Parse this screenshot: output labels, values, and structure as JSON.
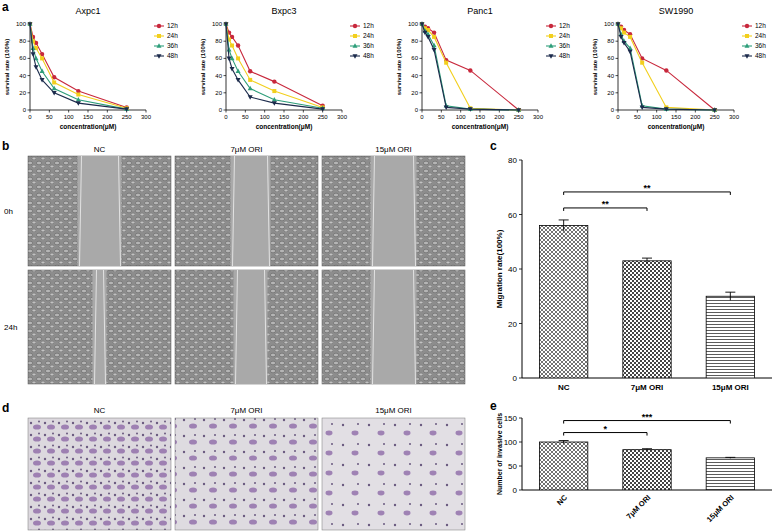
{
  "panel_labels": [
    "a",
    "b",
    "c",
    "d",
    "e"
  ],
  "images": {
    "b": {
      "columns": [
        "NC",
        "7μM ORI",
        "15μM ORI"
      ],
      "rows": [
        "0h",
        "24h"
      ]
    },
    "d": {
      "columns": [
        "NC",
        "7μM ORI",
        "15μM ORI"
      ]
    }
  },
  "chart_data": [
    {
      "type": "line",
      "title": "Axpc1",
      "x_label": "concentration(μM)",
      "y_label": "survival rate (100%)",
      "x": [
        0,
        7.8,
        15.6,
        31.25,
        62.5,
        125,
        250
      ],
      "xlim": [
        0,
        300
      ],
      "xticks": [
        0,
        50,
        100,
        150,
        200,
        250,
        300
      ],
      "ylim": [
        0,
        100
      ],
      "yticks": [
        0,
        20,
        40,
        60,
        80,
        100
      ],
      "legend": "right",
      "series": [
        {
          "name": "12h",
          "color": "#c8283c",
          "marker": "circle",
          "values": [
            100,
            85,
            78,
            65,
            38,
            22,
            3
          ]
        },
        {
          "name": "24h",
          "color": "#f2cf1d",
          "marker": "square",
          "values": [
            100,
            80,
            72,
            60,
            32,
            18,
            2
          ]
        },
        {
          "name": "36h",
          "color": "#2e9e7a",
          "marker": "triangle",
          "values": [
            100,
            72,
            60,
            45,
            25,
            12,
            1
          ]
        },
        {
          "name": "48h",
          "color": "#1c2b4c",
          "marker": "triangle-down",
          "values": [
            100,
            65,
            50,
            35,
            20,
            8,
            1
          ]
        }
      ]
    },
    {
      "type": "line",
      "title": "Bxpc3",
      "x_label": "concentration(μM)",
      "y_label": "survival rate (100%)",
      "x": [
        0,
        7.8,
        15.6,
        31.25,
        62.5,
        125,
        250
      ],
      "xlim": [
        0,
        300
      ],
      "xticks": [
        0,
        50,
        100,
        150,
        200,
        250,
        300
      ],
      "ylim": [
        0,
        100
      ],
      "yticks": [
        0,
        20,
        40,
        60,
        80,
        100
      ],
      "legend": "right",
      "series": [
        {
          "name": "12h",
          "color": "#c8283c",
          "marker": "circle",
          "values": [
            100,
            90,
            85,
            75,
            45,
            33,
            5
          ]
        },
        {
          "name": "24h",
          "color": "#f2cf1d",
          "marker": "square",
          "values": [
            100,
            82,
            75,
            60,
            35,
            22,
            3
          ]
        },
        {
          "name": "36h",
          "color": "#2e9e7a",
          "marker": "triangle",
          "values": [
            100,
            70,
            60,
            45,
            25,
            12,
            2
          ]
        },
        {
          "name": "48h",
          "color": "#1c2b4c",
          "marker": "triangle-down",
          "values": [
            100,
            60,
            48,
            35,
            15,
            8,
            1
          ]
        }
      ]
    },
    {
      "type": "line",
      "title": "Panc1",
      "x_label": "concentration(μM)",
      "y_label": "survival rate (100%)",
      "x": [
        0,
        7.8,
        15.6,
        31.25,
        62.5,
        125,
        250
      ],
      "xlim": [
        0,
        300
      ],
      "xticks": [
        0,
        50,
        100,
        150,
        200,
        250,
        300
      ],
      "ylim": [
        0,
        100
      ],
      "yticks": [
        0,
        20,
        40,
        60,
        80,
        100
      ],
      "legend": "right",
      "series": [
        {
          "name": "12h",
          "color": "#c8283c",
          "marker": "circle",
          "values": [
            100,
            97,
            95,
            90,
            58,
            46,
            0
          ]
        },
        {
          "name": "24h",
          "color": "#f2cf1d",
          "marker": "square",
          "values": [
            100,
            95,
            93,
            85,
            55,
            2,
            0
          ]
        },
        {
          "name": "36h",
          "color": "#2e9e7a",
          "marker": "triangle",
          "values": [
            100,
            92,
            88,
            75,
            5,
            1,
            0
          ]
        },
        {
          "name": "48h",
          "color": "#1c2b4c",
          "marker": "triangle-down",
          "values": [
            100,
            90,
            85,
            70,
            3,
            1,
            0
          ]
        }
      ]
    },
    {
      "type": "line",
      "title": "SW1990",
      "x_label": "concentration(μM)",
      "y_label": "survival rate (100%)",
      "x": [
        0,
        7.8,
        15.6,
        31.25,
        62.5,
        125,
        250
      ],
      "xlim": [
        0,
        300
      ],
      "xticks": [
        0,
        50,
        100,
        150,
        200,
        250,
        300
      ],
      "ylim": [
        0,
        100
      ],
      "yticks": [
        0,
        20,
        40,
        60,
        80,
        100
      ],
      "legend": "right",
      "series": [
        {
          "name": "12h",
          "color": "#c8283c",
          "marker": "circle",
          "values": [
            100,
            97,
            93,
            88,
            60,
            46,
            0
          ]
        },
        {
          "name": "24h",
          "color": "#f2cf1d",
          "marker": "square",
          "values": [
            100,
            95,
            90,
            85,
            55,
            3,
            0
          ]
        },
        {
          "name": "36h",
          "color": "#2e9e7a",
          "marker": "triangle",
          "values": [
            100,
            88,
            80,
            72,
            5,
            1,
            0
          ]
        },
        {
          "name": "48h",
          "color": "#1c2b4c",
          "marker": "triangle-down",
          "values": [
            100,
            85,
            78,
            68,
            3,
            1,
            0
          ]
        }
      ]
    },
    {
      "type": "bar",
      "y_label": "Migration rate(100%)",
      "categories": [
        "NC",
        "7μM ORI",
        "15μM ORI"
      ],
      "values": [
        56,
        43,
        30
      ],
      "errors": [
        2,
        1,
        1.5
      ],
      "ylim": [
        0,
        80
      ],
      "yticks": [
        0,
        20,
        40,
        60,
        80
      ],
      "annotations": [
        {
          "text": "**",
          "between": [
            "NC",
            "7μM ORI"
          ]
        },
        {
          "text": "**",
          "between": [
            "NC",
            "15μM ORI"
          ]
        }
      ]
    },
    {
      "type": "bar",
      "y_label": "Number of invasive cells",
      "categories": [
        "NC",
        "7μM ORI",
        "15μM ORI"
      ],
      "values": [
        100,
        84,
        67
      ],
      "errors": [
        3,
        2,
        1
      ],
      "ylim": [
        0,
        150
      ],
      "yticks": [
        0,
        50,
        100,
        150
      ],
      "annotations": [
        {
          "text": "*",
          "between": [
            "NC",
            "7μM ORI"
          ]
        },
        {
          "text": "***",
          "between": [
            "NC",
            "15μM ORI"
          ]
        }
      ]
    }
  ]
}
